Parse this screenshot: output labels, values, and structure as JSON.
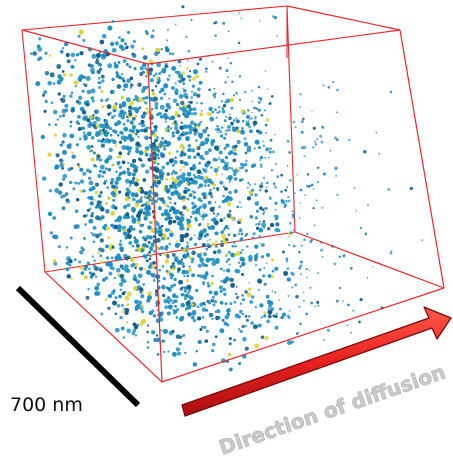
{
  "figure": {
    "scale_bar_label": "700 nm",
    "arrow_label": "Direction of diffusion"
  },
  "colors": {
    "box_edge": "#e8262b",
    "particle_blue": "#1f8fc4",
    "particle_dark": "#0e5f8a",
    "particle_yellow": "#d9d431",
    "arrow_fill": "#e82020",
    "arrow_outline": "#7a0a0a",
    "scale_bar": "#000000"
  },
  "icons": {
    "arrow": "right-arrow-icon",
    "scale_bar": "scale-bar-line"
  }
}
